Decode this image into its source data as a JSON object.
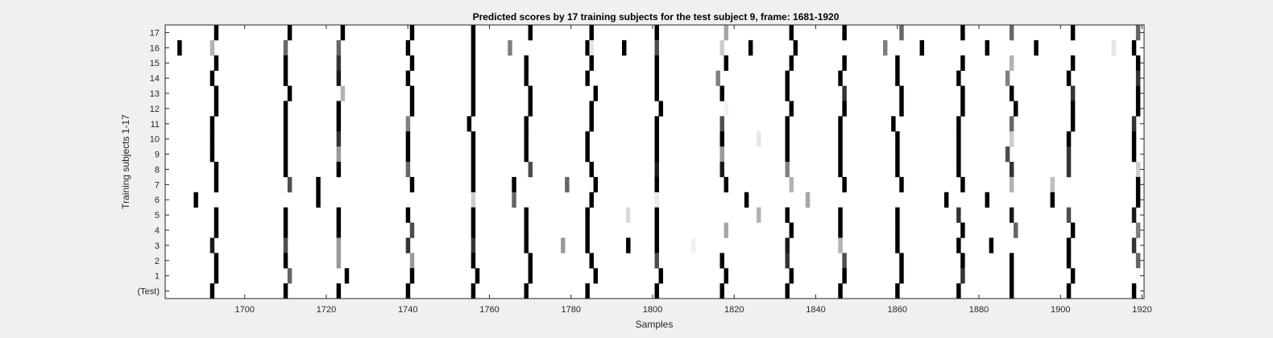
{
  "chart_data": {
    "type": "heatmap",
    "title": "Predicted scores by 17 training subjects for the test subject 9, frame: 1681-1920",
    "xlabel": "Samples",
    "ylabel": "Training subjects 1-17",
    "xlim": [
      1681,
      1920
    ],
    "x_ticks": [
      1700,
      1720,
      1740,
      1760,
      1780,
      1800,
      1820,
      1840,
      1860,
      1880,
      1900,
      1920
    ],
    "y_tick_labels": [
      "17",
      "16",
      "15",
      "14",
      "13",
      "12",
      "11",
      "10",
      "9",
      "8",
      "7",
      "6",
      "5",
      "4",
      "3",
      "2",
      "1",
      "(Test)"
    ],
    "colormap": "gray, 1 = black, 0 = white",
    "grid": false,
    "rows": [
      {
        "label": "17",
        "cells": [
          [
            1693,
            1
          ],
          [
            1711,
            1
          ],
          [
            1724,
            1
          ],
          [
            1741,
            1
          ],
          [
            1756,
            1
          ],
          [
            1770,
            1
          ],
          [
            1785,
            1
          ],
          [
            1801,
            1
          ],
          [
            1818,
            0.35
          ],
          [
            1834,
            1
          ],
          [
            1847,
            1
          ],
          [
            1861,
            0.6
          ],
          [
            1876,
            1
          ],
          [
            1888,
            0.6
          ],
          [
            1903,
            1
          ],
          [
            1919,
            0.6
          ]
        ]
      },
      {
        "label": "16",
        "cells": [
          [
            1684,
            1
          ],
          [
            1692,
            0.3
          ],
          [
            1710,
            0.6
          ],
          [
            1723,
            0.6
          ],
          [
            1740,
            1
          ],
          [
            1756,
            1
          ],
          [
            1765,
            0.5
          ],
          [
            1784,
            1
          ],
          [
            1785,
            0.1
          ],
          [
            1793,
            1
          ],
          [
            1801,
            0.7
          ],
          [
            1817,
            0.2
          ],
          [
            1824,
            1
          ],
          [
            1835,
            1
          ],
          [
            1857,
            0.5
          ],
          [
            1866,
            1
          ],
          [
            1882,
            1
          ],
          [
            1894,
            1
          ],
          [
            1913,
            0.1
          ],
          [
            1918,
            1
          ]
        ]
      },
      {
        "label": "15",
        "cells": [
          [
            1693,
            1
          ],
          [
            1710,
            1
          ],
          [
            1723,
            0.8
          ],
          [
            1741,
            1
          ],
          [
            1756,
            1
          ],
          [
            1769,
            1
          ],
          [
            1785,
            1
          ],
          [
            1801,
            1
          ],
          [
            1818,
            1
          ],
          [
            1834,
            1
          ],
          [
            1847,
            1
          ],
          [
            1860,
            1
          ],
          [
            1876,
            1
          ],
          [
            1888,
            0.3
          ],
          [
            1903,
            1
          ],
          [
            1919,
            1
          ]
        ]
      },
      {
        "label": "14",
        "cells": [
          [
            1692,
            1
          ],
          [
            1710,
            1
          ],
          [
            1723,
            0.9
          ],
          [
            1740,
            1
          ],
          [
            1756,
            1
          ],
          [
            1769,
            1
          ],
          [
            1784,
            1
          ],
          [
            1801,
            1
          ],
          [
            1816,
            0.5
          ],
          [
            1833,
            1
          ],
          [
            1846,
            1
          ],
          [
            1860,
            1
          ],
          [
            1875,
            1
          ],
          [
            1887,
            0.5
          ],
          [
            1902,
            1
          ],
          [
            1919,
            0.8
          ]
        ]
      },
      {
        "label": "13",
        "cells": [
          [
            1693,
            1
          ],
          [
            1711,
            1
          ],
          [
            1724,
            0.3
          ],
          [
            1741,
            1
          ],
          [
            1756,
            1
          ],
          [
            1770,
            1
          ],
          [
            1786,
            1
          ],
          [
            1801,
            1
          ],
          [
            1817,
            1
          ],
          [
            1833,
            1
          ],
          [
            1847,
            0.8
          ],
          [
            1861,
            1
          ],
          [
            1876,
            1
          ],
          [
            1888,
            1
          ],
          [
            1903,
            0.8
          ],
          [
            1919,
            1
          ]
        ]
      },
      {
        "label": "12",
        "cells": [
          [
            1693,
            1
          ],
          [
            1710,
            1
          ],
          [
            1723,
            1
          ],
          [
            1741,
            1
          ],
          [
            1756,
            1
          ],
          [
            1770,
            1
          ],
          [
            1785,
            1
          ],
          [
            1802,
            1
          ],
          [
            1818,
            0.05
          ],
          [
            1834,
            1
          ],
          [
            1847,
            1
          ],
          [
            1861,
            1
          ],
          [
            1876,
            1
          ],
          [
            1889,
            1
          ],
          [
            1903,
            1
          ],
          [
            1919,
            1
          ]
        ]
      },
      {
        "label": "11",
        "cells": [
          [
            1692,
            1
          ],
          [
            1710,
            1
          ],
          [
            1723,
            1
          ],
          [
            1740,
            0.5
          ],
          [
            1755,
            1
          ],
          [
            1769,
            1
          ],
          [
            1785,
            1
          ],
          [
            1801,
            1
          ],
          [
            1817,
            0.7
          ],
          [
            1833,
            1
          ],
          [
            1846,
            1
          ],
          [
            1859,
            1
          ],
          [
            1875,
            1
          ],
          [
            1888,
            0.6
          ],
          [
            1903,
            1
          ],
          [
            1918,
            0.8
          ]
        ]
      },
      {
        "label": "10",
        "cells": [
          [
            1692,
            1
          ],
          [
            1710,
            1
          ],
          [
            1723,
            0.8
          ],
          [
            1740,
            1
          ],
          [
            1756,
            1
          ],
          [
            1769,
            1
          ],
          [
            1784,
            1
          ],
          [
            1801,
            1
          ],
          [
            1817,
            1
          ],
          [
            1826,
            0.1
          ],
          [
            1833,
            1
          ],
          [
            1846,
            1
          ],
          [
            1860,
            1
          ],
          [
            1875,
            1
          ],
          [
            1888,
            0.2
          ],
          [
            1902,
            1
          ],
          [
            1918,
            1
          ]
        ]
      },
      {
        "label": "9",
        "cells": [
          [
            1692,
            1
          ],
          [
            1710,
            1
          ],
          [
            1723,
            0.4
          ],
          [
            1740,
            1
          ],
          [
            1756,
            1
          ],
          [
            1769,
            1
          ],
          [
            1784,
            1
          ],
          [
            1801,
            1
          ],
          [
            1817,
            0.4
          ],
          [
            1833,
            1
          ],
          [
            1846,
            1
          ],
          [
            1860,
            1
          ],
          [
            1875,
            1
          ],
          [
            1887,
            0.7
          ],
          [
            1902,
            0.8
          ],
          [
            1918,
            1
          ]
        ]
      },
      {
        "label": "8",
        "cells": [
          [
            1693,
            1
          ],
          [
            1710,
            1
          ],
          [
            1723,
            1
          ],
          [
            1740,
            0.6
          ],
          [
            1756,
            1
          ],
          [
            1770,
            0.7
          ],
          [
            1785,
            1
          ],
          [
            1801,
            0.9
          ],
          [
            1817,
            0.9
          ],
          [
            1833,
            0.5
          ],
          [
            1846,
            1
          ],
          [
            1860,
            1
          ],
          [
            1875,
            1
          ],
          [
            1888,
            0.8
          ],
          [
            1902,
            0.8
          ],
          [
            1919,
            0.2
          ]
        ]
      },
      {
        "label": "7",
        "cells": [
          [
            1693,
            1
          ],
          [
            1711,
            0.7
          ],
          [
            1718,
            1
          ],
          [
            1741,
            1
          ],
          [
            1756,
            1
          ],
          [
            1766,
            1
          ],
          [
            1779,
            0.6
          ],
          [
            1786,
            1
          ],
          [
            1801,
            1
          ],
          [
            1818,
            1
          ],
          [
            1834,
            0.3
          ],
          [
            1847,
            1
          ],
          [
            1861,
            1
          ],
          [
            1876,
            1
          ],
          [
            1888,
            0.3
          ],
          [
            1898,
            0.25
          ],
          [
            1919,
            1
          ]
        ]
      },
      {
        "label": "6",
        "cells": [
          [
            1688,
            1
          ],
          [
            1718,
            1
          ],
          [
            1756,
            0.2
          ],
          [
            1766,
            0.6
          ],
          [
            1785,
            1
          ],
          [
            1801,
            0.08
          ],
          [
            1823,
            1
          ],
          [
            1838,
            0.35
          ],
          [
            1872,
            1
          ],
          [
            1882,
            1
          ],
          [
            1898,
            1
          ],
          [
            1919,
            1
          ]
        ]
      },
      {
        "label": "5",
        "cells": [
          [
            1693,
            1
          ],
          [
            1710,
            1
          ],
          [
            1723,
            1
          ],
          [
            1740,
            1
          ],
          [
            1756,
            1
          ],
          [
            1769,
            1
          ],
          [
            1784,
            1
          ],
          [
            1794,
            0.15
          ],
          [
            1801,
            1
          ],
          [
            1826,
            0.3
          ],
          [
            1833,
            1
          ],
          [
            1846,
            1
          ],
          [
            1860,
            1
          ],
          [
            1875,
            0.8
          ],
          [
            1888,
            0.9
          ],
          [
            1902,
            0.7
          ],
          [
            1918,
            0.9
          ]
        ]
      },
      {
        "label": "4",
        "cells": [
          [
            1693,
            1
          ],
          [
            1710,
            1
          ],
          [
            1723,
            1
          ],
          [
            1741,
            0.7
          ],
          [
            1756,
            1
          ],
          [
            1769,
            1
          ],
          [
            1784,
            1
          ],
          [
            1801,
            1
          ],
          [
            1818,
            0.35
          ],
          [
            1834,
            1
          ],
          [
            1846,
            1
          ],
          [
            1860,
            1
          ],
          [
            1876,
            1
          ],
          [
            1889,
            0.6
          ],
          [
            1903,
            1
          ],
          [
            1919,
            0.5
          ]
        ]
      },
      {
        "label": "3",
        "cells": [
          [
            1692,
            0.9
          ],
          [
            1710,
            0.7
          ],
          [
            1723,
            0.4
          ],
          [
            1740,
            0.8
          ],
          [
            1756,
            0.8
          ],
          [
            1769,
            1
          ],
          [
            1778,
            0.4
          ],
          [
            1784,
            1
          ],
          [
            1794,
            1
          ],
          [
            1801,
            1
          ],
          [
            1810,
            0.05
          ],
          [
            1833,
            0.9
          ],
          [
            1846,
            0.3
          ],
          [
            1860,
            1
          ],
          [
            1875,
            1
          ],
          [
            1883,
            1
          ],
          [
            1902,
            1
          ],
          [
            1918,
            0.8
          ]
        ]
      },
      {
        "label": "2",
        "cells": [
          [
            1693,
            1
          ],
          [
            1710,
            1
          ],
          [
            1723,
            0.4
          ],
          [
            1741,
            0.4
          ],
          [
            1756,
            1
          ],
          [
            1770,
            1
          ],
          [
            1785,
            1
          ],
          [
            1801,
            0.7
          ],
          [
            1817,
            1
          ],
          [
            1833,
            0.8
          ],
          [
            1847,
            0.7
          ],
          [
            1861,
            1
          ],
          [
            1876,
            1
          ],
          [
            1888,
            1
          ],
          [
            1902,
            1
          ],
          [
            1919,
            0.6
          ]
        ]
      },
      {
        "label": "1",
        "cells": [
          [
            1693,
            1
          ],
          [
            1711,
            0.6
          ],
          [
            1725,
            1
          ],
          [
            1741,
            1
          ],
          [
            1757,
            1
          ],
          [
            1770,
            1
          ],
          [
            1786,
            1
          ],
          [
            1802,
            1
          ],
          [
            1818,
            1
          ],
          [
            1834,
            1
          ],
          [
            1847,
            1
          ],
          [
            1861,
            1
          ],
          [
            1876,
            0.8
          ],
          [
            1888,
            1
          ],
          [
            1903,
            1
          ],
          [
            1919,
            0.02
          ]
        ]
      },
      {
        "label": "(Test)",
        "cells": [
          [
            1692,
            1
          ],
          [
            1710,
            1
          ],
          [
            1723,
            1
          ],
          [
            1740,
            1
          ],
          [
            1756,
            1
          ],
          [
            1769,
            1
          ],
          [
            1784,
            1
          ],
          [
            1801,
            1
          ],
          [
            1817,
            1
          ],
          [
            1833,
            1
          ],
          [
            1846,
            1
          ],
          [
            1860,
            1
          ],
          [
            1875,
            1
          ],
          [
            1888,
            1
          ],
          [
            1902,
            1
          ],
          [
            1918,
            1
          ]
        ]
      }
    ]
  }
}
